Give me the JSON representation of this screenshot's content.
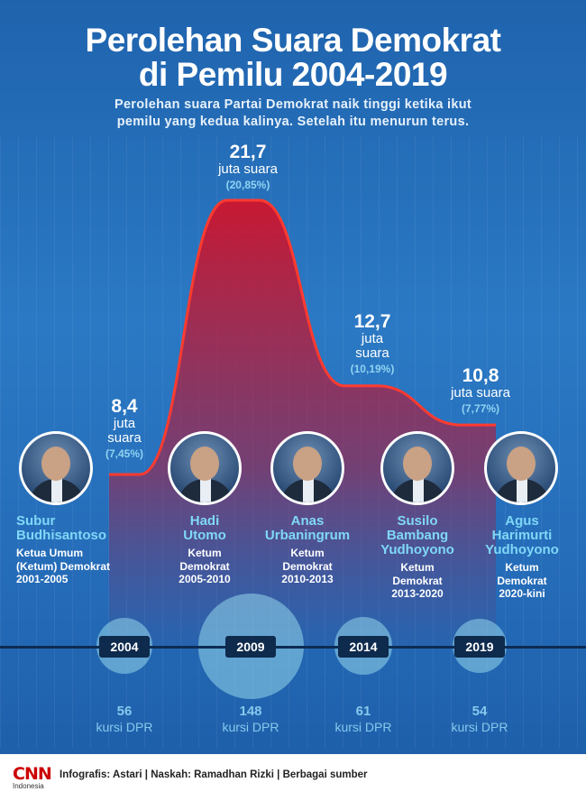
{
  "header": {
    "title_line1": "Perolehan Suara Demokrat",
    "title_line2": "di Pemilu 2004-2019",
    "subtitle_line1": "Perolehan suara Partai Demokrat naik tinggi ketika ikut",
    "subtitle_line2": "pemilu yang kedua kalinya. Setelah itu menurun terus."
  },
  "colors": {
    "area": "#c8102e",
    "line": "#ff3b2f",
    "timeline": "#0d2c52",
    "name": "#7fd8f7",
    "percent": "#8fd3f2"
  },
  "chart_data": {
    "type": "area",
    "x": [
      "2004",
      "2009",
      "2014",
      "2019"
    ],
    "series": [
      {
        "values": [
          8.4,
          21.7,
          12.7,
          10.8
        ]
      }
    ],
    "vote_share": [
      "7,45%",
      "20,85%",
      "10,19%",
      "7,77%"
    ],
    "labels": [
      {
        "num": "8,4",
        "unit_lines": [
          "juta",
          "suara"
        ],
        "pct": "(7,45%)"
      },
      {
        "num": "21,7",
        "unit_lines": [
          "juta suara"
        ],
        "pct": "(20,85%)"
      },
      {
        "num": "12,7",
        "unit_lines": [
          "juta",
          "suara"
        ],
        "pct": "(10,19%)"
      },
      {
        "num": "10,8",
        "unit_lines": [
          "juta suara"
        ],
        "pct": "(7,77%)"
      }
    ],
    "seats": [
      {
        "num": "56",
        "label": "kursi DPR"
      },
      {
        "num": "148",
        "label": "kursi DPR"
      },
      {
        "num": "61",
        "label": "kursi DPR"
      },
      {
        "num": "54",
        "label": "kursi DPR"
      }
    ]
  },
  "people": [
    {
      "name_lines": [
        "Subur",
        "Budhisantoso"
      ],
      "role_lines": [
        "Ketua Umum",
        "(Ketum) Demokrat",
        "2001-2005"
      ]
    },
    {
      "name_lines": [
        "Hadi",
        "Utomo"
      ],
      "role_lines": [
        "Ketum",
        "Demokrat",
        "2005-2010"
      ]
    },
    {
      "name_lines": [
        "Anas",
        "Urbaningrum"
      ],
      "role_lines": [
        "Ketum",
        "Demokrat",
        "2010-2013"
      ]
    },
    {
      "name_lines": [
        "Susilo",
        "Bambang",
        "Yudhoyono"
      ],
      "role_lines": [
        "Ketum",
        "Demokrat",
        "2013-2020"
      ]
    },
    {
      "name_lines": [
        "Agus",
        "Harimurti",
        "Yudhoyono"
      ],
      "role_lines": [
        "Ketum",
        "Demokrat",
        "2020-kini"
      ]
    }
  ],
  "footer": {
    "logo_text": "CNN",
    "logo_sub": "Indonesia",
    "credits": "Infografis: Astari | Naskah: Ramadhan Rizki | Berbagai sumber"
  }
}
